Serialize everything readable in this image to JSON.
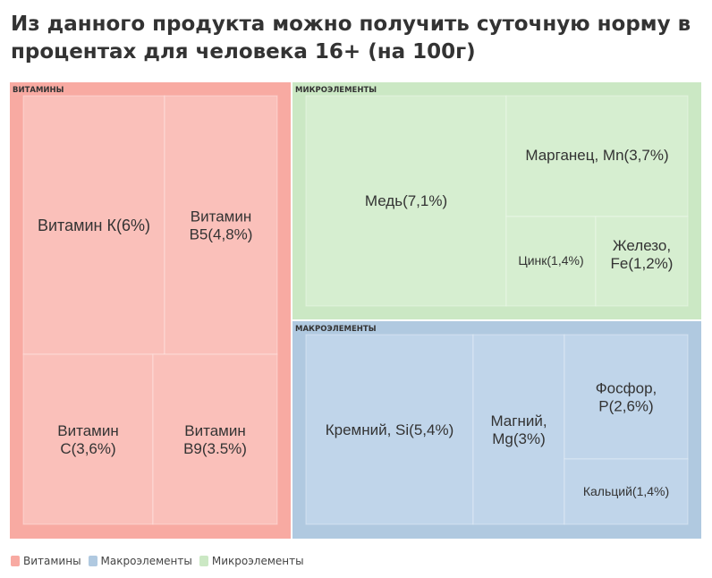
{
  "title": "Из данного продукта можно получить суточную норму в процентах для человека 16+ (на 100г)",
  "legend": [
    {
      "label": "Витамины",
      "color": "#f8aaa2"
    },
    {
      "label": "Макроэлементы",
      "color": "#b0c9e0"
    },
    {
      "label": "Микроэлементы",
      "color": "#cbe8c4"
    }
  ],
  "chart_data": {
    "type": "treemap",
    "title": "Из данного продукта можно получить суточную норму в процентах для человека 16+ (на 100г)",
    "unit": "%",
    "groups": [
      {
        "name": "Витамины",
        "header": "ВИТАМИНЫ",
        "color": "#f8aaa2",
        "tile_color": "#fac0ba",
        "items": [
          {
            "label": "Витамин К(6%)",
            "value": 6
          },
          {
            "label": "Витамин В5(4,8%)",
            "value": 4.8
          },
          {
            "label": "Витамин С(3,6%)",
            "value": 3.6
          },
          {
            "label": "Витамин В9(3.5%)",
            "value": 3.5
          }
        ]
      },
      {
        "name": "Микроэлементы",
        "header": "МИКРОЭЛЕМЕНТЫ",
        "color": "#cbe8c4",
        "tile_color": "#d6eed0",
        "items": [
          {
            "label": "Медь(7,1%)",
            "value": 7.1
          },
          {
            "label": "Марганец, Mn(3,7%)",
            "value": 3.7
          },
          {
            "label": "Цинк(1,4%)",
            "value": 1.4
          },
          {
            "label": "Железо, Fe(1,2%)",
            "value": 1.2
          }
        ]
      },
      {
        "name": "Макроэлементы",
        "header": "МАКРОЭЛЕМЕНТЫ",
        "color": "#b0c9e0",
        "tile_color": "#c0d5ea",
        "items": [
          {
            "label": "Кремний, Si(5,4%)",
            "value": 5.4
          },
          {
            "label": "Магний, Mg(3%)",
            "value": 3
          },
          {
            "label": "Фосфор, P(2,6%)",
            "value": 2.6
          },
          {
            "label": "Кальций(1,4%)",
            "value": 1.4
          }
        ]
      }
    ]
  }
}
